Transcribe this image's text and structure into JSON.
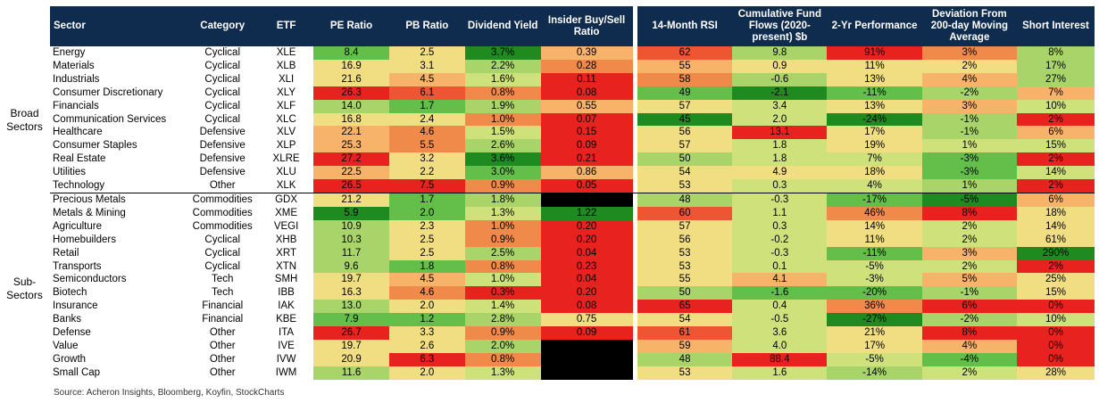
{
  "chart_data": {
    "type": "table",
    "columns": [
      "Sector",
      "Category",
      "ETF",
      "PE Ratio",
      "PB Ratio",
      "Dividend Yield",
      "Insider Buy/Sell Ratio",
      "14-Month RSI",
      "Cumulative Fund Flows (2020-present) $b",
      "2-Yr Performance",
      "Deviation From 200-day Moving Average",
      "Short Interest"
    ],
    "groups": [
      {
        "label": "Broad Sectors",
        "rows": [
          {
            "sector": "Energy",
            "category": "Cyclical",
            "etf": "XLE",
            "pe": "8.4",
            "pb": "2.5",
            "dy": "3.7%",
            "ibs": "0.39",
            "rsi": "62",
            "flows": "9.8",
            "perf": "91%",
            "dev": "3%",
            "si": "8%"
          },
          {
            "sector": "Materials",
            "category": "Cyclical",
            "etf": "XLB",
            "pe": "16.9",
            "pb": "3.1",
            "dy": "2.2%",
            "ibs": "0.28",
            "rsi": "55",
            "flows": "0.9",
            "perf": "11%",
            "dev": "2%",
            "si": "17%"
          },
          {
            "sector": "Industrials",
            "category": "Cyclical",
            "etf": "XLI",
            "pe": "21.6",
            "pb": "4.5",
            "dy": "1.6%",
            "ibs": "0.11",
            "rsi": "58",
            "flows": "-0.6",
            "perf": "13%",
            "dev": "4%",
            "si": "27%"
          },
          {
            "sector": "Consumer Discretionary",
            "category": "Cyclical",
            "etf": "XLY",
            "pe": "26.3",
            "pb": "6.1",
            "dy": "0.8%",
            "ibs": "0.08",
            "rsi": "49",
            "flows": "-2.1",
            "perf": "-11%",
            "dev": "-2%",
            "si": "7%"
          },
          {
            "sector": "Financials",
            "category": "Cyclical",
            "etf": "XLF",
            "pe": "14.0",
            "pb": "1.7",
            "dy": "1.9%",
            "ibs": "0.55",
            "rsi": "57",
            "flows": "3.4",
            "perf": "13%",
            "dev": "3%",
            "si": "10%"
          },
          {
            "sector": "Communication Services",
            "category": "Cyclical",
            "etf": "XLC",
            "pe": "16.8",
            "pb": "2.4",
            "dy": "1.0%",
            "ibs": "0.07",
            "rsi": "45",
            "flows": "2.0",
            "perf": "-24%",
            "dev": "-1%",
            "si": "2%"
          },
          {
            "sector": "Healthcare",
            "category": "Defensive",
            "etf": "XLV",
            "pe": "22.1",
            "pb": "4.6",
            "dy": "1.5%",
            "ibs": "0.15",
            "rsi": "56",
            "flows": "13.1",
            "perf": "17%",
            "dev": "-1%",
            "si": "6%"
          },
          {
            "sector": "Consumer Staples",
            "category": "Defensive",
            "etf": "XLP",
            "pe": "25.3",
            "pb": "5.5",
            "dy": "2.6%",
            "ibs": "0.09",
            "rsi": "57",
            "flows": "1.8",
            "perf": "19%",
            "dev": "1%",
            "si": "15%"
          },
          {
            "sector": "Real Estate",
            "category": "Defensive",
            "etf": "XLRE",
            "pe": "27.2",
            "pb": "3.2",
            "dy": "3.6%",
            "ibs": "0.21",
            "rsi": "50",
            "flows": "1.8",
            "perf": "7%",
            "dev": "-3%",
            "si": "2%"
          },
          {
            "sector": "Utilities",
            "category": "Defensive",
            "etf": "XLU",
            "pe": "22.5",
            "pb": "2.2",
            "dy": "3.0%",
            "ibs": "0.86",
            "rsi": "54",
            "flows": "4.9",
            "perf": "18%",
            "dev": "-3%",
            "si": "14%"
          },
          {
            "sector": "Technology",
            "category": "Other",
            "etf": "XLK",
            "pe": "26.5",
            "pb": "7.5",
            "dy": "0.9%",
            "ibs": "0.05",
            "rsi": "53",
            "flows": "0.3",
            "perf": "4%",
            "dev": "1%",
            "si": "2%"
          }
        ]
      },
      {
        "label": "Sub-Sectors",
        "rows": [
          {
            "sector": "Precious Metals",
            "category": "Commodities",
            "etf": "GDX",
            "pe": "21.2",
            "pb": "1.7",
            "dy": "1.8%",
            "ibs": "",
            "rsi": "48",
            "flows": "-0.3",
            "perf": "-17%",
            "dev": "-5%",
            "si": "6%"
          },
          {
            "sector": "Metals & Mining",
            "category": "Commodities",
            "etf": "XME",
            "pe": "5.9",
            "pb": "2.0",
            "dy": "1.3%",
            "ibs": "1.22",
            "rsi": "60",
            "flows": "1.1",
            "perf": "46%",
            "dev": "8%",
            "si": "18%"
          },
          {
            "sector": "Agriculture",
            "category": "Commodities",
            "etf": "VEGI",
            "pe": "10.9",
            "pb": "2.3",
            "dy": "1.0%",
            "ibs": "0.20",
            "rsi": "57",
            "flows": "0.3",
            "perf": "14%",
            "dev": "2%",
            "si": "14%"
          },
          {
            "sector": "Homebuilders",
            "category": "Cyclical",
            "etf": "XHB",
            "pe": "10.3",
            "pb": "2.5",
            "dy": "0.9%",
            "ibs": "0.20",
            "rsi": "56",
            "flows": "-0.2",
            "perf": "11%",
            "dev": "2%",
            "si": "61%"
          },
          {
            "sector": "Retail",
            "category": "Cyclical",
            "etf": "XRT",
            "pe": "11.7",
            "pb": "2.5",
            "dy": "2.5%",
            "ibs": "0.04",
            "rsi": "53",
            "flows": "-0.3",
            "perf": "-11%",
            "dev": "3%",
            "si": "290%"
          },
          {
            "sector": "Transports",
            "category": "Cyclical",
            "etf": "XTN",
            "pe": "9.6",
            "pb": "1.8",
            "dy": "0.8%",
            "ibs": "0.23",
            "rsi": "53",
            "flows": "0.1",
            "perf": "-5%",
            "dev": "2%",
            "si": "2%"
          },
          {
            "sector": "Semiconductors",
            "category": "Tech",
            "etf": "SMH",
            "pe": "19.7",
            "pb": "4.5",
            "dy": "1.0%",
            "ibs": "0.04",
            "rsi": "55",
            "flows": "4.1",
            "perf": "-3%",
            "dev": "5%",
            "si": "25%"
          },
          {
            "sector": "Biotech",
            "category": "Tech",
            "etf": "IBB",
            "pe": "16.3",
            "pb": "4.6",
            "dy": "0.3%",
            "ibs": "0.20",
            "rsi": "50",
            "flows": "-1.6",
            "perf": "-20%",
            "dev": "-1%",
            "si": "15%"
          },
          {
            "sector": "Insurance",
            "category": "Financial",
            "etf": "IAK",
            "pe": "13.0",
            "pb": "2.0",
            "dy": "1.4%",
            "ibs": "0.08",
            "rsi": "65",
            "flows": "0.4",
            "perf": "36%",
            "dev": "6%",
            "si": "0%"
          },
          {
            "sector": "Banks",
            "category": "Financial",
            "etf": "KBE",
            "pe": "7.9",
            "pb": "1.2",
            "dy": "2.8%",
            "ibs": "0.75",
            "rsi": "54",
            "flows": "-0.5",
            "perf": "-27%",
            "dev": "-2%",
            "si": "10%"
          },
          {
            "sector": "Defense",
            "category": "Other",
            "etf": "ITA",
            "pe": "26.7",
            "pb": "3.3",
            "dy": "0.9%",
            "ibs": "0.09",
            "rsi": "61",
            "flows": "3.6",
            "perf": "21%",
            "dev": "8%",
            "si": "0%"
          },
          {
            "sector": "Value",
            "category": "Other",
            "etf": "IVE",
            "pe": "19.7",
            "pb": "2.6",
            "dy": "2.0%",
            "ibs": "",
            "rsi": "59",
            "flows": "4.0",
            "perf": "17%",
            "dev": "4%",
            "si": "0%"
          },
          {
            "sector": "Growth",
            "category": "Other",
            "etf": "IVW",
            "pe": "20.9",
            "pb": "6.3",
            "dy": "0.8%",
            "ibs": "",
            "rsi": "48",
            "flows": "88.4",
            "perf": "-5%",
            "dev": "-4%",
            "si": "0%"
          },
          {
            "sector": "Small Cap",
            "category": "Other",
            "etf": "IWM",
            "pe": "11.6",
            "pb": "2.0",
            "dy": "1.3%",
            "ibs": "",
            "rsi": "53",
            "flows": "1.6",
            "perf": "-14%",
            "dev": "2%",
            "si": "28%"
          }
        ]
      }
    ],
    "source": "Source: Acheron Insights, Bloomberg, Koyfin, StockCharts"
  },
  "colors": {
    "header_bg": "#0f2b4d",
    "header_text": "#ffffff",
    "g_dark": "#1f8a1f",
    "g_mid": "#63be4a",
    "g_light": "#a9d46a",
    "yellowgreen": "#cfe17a",
    "yellow": "#f1dd82",
    "orange_light": "#f7b36a",
    "orange": "#f08a4b",
    "red_light": "#ee5533",
    "red": "#e8231f",
    "black": "#000000"
  },
  "cell_colors": [
    [
      "g_mid",
      "yellow",
      "g_dark",
      "orange_light",
      "red_light",
      "g_light",
      "red",
      "orange",
      "g_light"
    ],
    [
      "yellow",
      "yellow",
      "g_light",
      "orange",
      "orange_light",
      "yellow",
      "yellow",
      "yellow",
      "g_light"
    ],
    [
      "yellow",
      "orange_light",
      "yellowgreen",
      "red",
      "orange",
      "g_light",
      "yellow",
      "orange_light",
      "g_light"
    ],
    [
      "red",
      "red_light",
      "orange",
      "red",
      "g_mid",
      "g_dark",
      "g_mid",
      "g_light",
      "orange_light"
    ],
    [
      "g_light",
      "g_mid",
      "g_light",
      "orange_light",
      "yellow",
      "yellowgreen",
      "yellow",
      "orange_light",
      "yellowgreen"
    ],
    [
      "yellow",
      "yellow",
      "orange",
      "red",
      "g_dark",
      "yellowgreen",
      "g_dark",
      "g_light",
      "red"
    ],
    [
      "orange_light",
      "orange",
      "yellowgreen",
      "red",
      "yellow",
      "red",
      "yellow",
      "g_light",
      "orange_light"
    ],
    [
      "orange_light",
      "orange",
      "g_light",
      "red",
      "yellow",
      "yellowgreen",
      "yellow",
      "yellowgreen",
      "yellowgreen"
    ],
    [
      "red",
      "yellow",
      "g_dark",
      "red",
      "g_light",
      "yellowgreen",
      "yellowgreen",
      "g_mid",
      "red"
    ],
    [
      "orange_light",
      "yellow",
      "g_mid",
      "orange_light",
      "yellow",
      "yellow",
      "yellow",
      "g_mid",
      "yellowgreen"
    ],
    [
      "red",
      "red",
      "orange",
      "red",
      "yellow",
      "yellowgreen",
      "yellowgreen",
      "g_light",
      "red"
    ],
    [
      "yellow",
      "g_mid",
      "g_light",
      "black",
      "g_light",
      "yellowgreen",
      "g_mid",
      "g_dark",
      "orange_light"
    ],
    [
      "g_dark",
      "g_mid",
      "yellowgreen",
      "g_dark",
      "red_light",
      "yellowgreen",
      "orange",
      "red",
      "yellow"
    ],
    [
      "g_light",
      "yellow",
      "orange",
      "red",
      "yellow",
      "yellowgreen",
      "yellow",
      "yellowgreen",
      "yellow"
    ],
    [
      "g_light",
      "yellow",
      "orange",
      "red",
      "yellow",
      "yellowgreen",
      "yellow",
      "yellowgreen",
      "yellow"
    ],
    [
      "g_light",
      "yellow",
      "g_light",
      "red",
      "yellow",
      "yellowgreen",
      "g_mid",
      "orange_light",
      "g_dark"
    ],
    [
      "g_light",
      "g_mid",
      "orange",
      "red",
      "yellow",
      "yellowgreen",
      "yellowgreen",
      "yellowgreen",
      "red"
    ],
    [
      "yellow",
      "orange_light",
      "yellowgreen",
      "red",
      "yellow",
      "orange_light",
      "yellowgreen",
      "orange_light",
      "yellow"
    ],
    [
      "yellow",
      "orange",
      "red",
      "red",
      "g_light",
      "g_mid",
      "g_mid",
      "g_light",
      "yellow"
    ],
    [
      "g_light",
      "yellow",
      "yellowgreen",
      "red",
      "red",
      "yellowgreen",
      "orange",
      "red",
      "red"
    ],
    [
      "g_mid",
      "g_mid",
      "g_light",
      "yellow",
      "yellow",
      "yellowgreen",
      "g_dark",
      "g_light",
      "yellowgreen"
    ],
    [
      "red",
      "yellow",
      "orange",
      "red",
      "red_light",
      "yellowgreen",
      "yellow",
      "red",
      "red"
    ],
    [
      "yellow",
      "yellow",
      "g_light",
      "black",
      "orange_light",
      "yellowgreen",
      "yellow",
      "orange_light",
      "red"
    ],
    [
      "yellow",
      "red",
      "orange",
      "black",
      "g_light",
      "red",
      "yellowgreen",
      "g_mid",
      "red"
    ],
    [
      "g_light",
      "yellow",
      "yellowgreen",
      "black",
      "yellow",
      "yellowgreen",
      "g_light",
      "yellowgreen",
      "yellow"
    ]
  ]
}
